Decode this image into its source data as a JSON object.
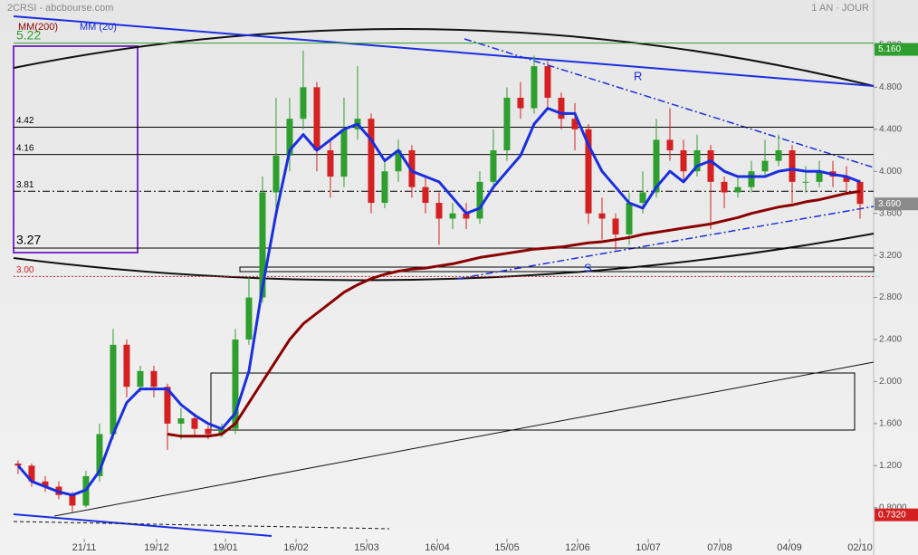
{
  "chart_data": {
    "type": "candlestick",
    "title": "2CRSI - abcbourse.com",
    "period": "1 AN · JOUR",
    "open": [
      1.22,
      1.2,
      1.05,
      1.0,
      0.92,
      0.82,
      1.1,
      1.5,
      2.35,
      1.95,
      2.1,
      1.95,
      1.6,
      1.65,
      1.55,
      1.5,
      1.55,
      2.4,
      2.8,
      3.8,
      4.15,
      4.5,
      4.8,
      4.2,
      3.95,
      4.4,
      4.5,
      3.7,
      4.0,
      4.2,
      3.85,
      3.7,
      3.55,
      3.6,
      3.55,
      3.9,
      4.2,
      4.7,
      4.6,
      5.0,
      4.7,
      4.5,
      4.4,
      3.6,
      3.55,
      3.4,
      3.7,
      3.8,
      4.3,
      4.2,
      4.0,
      4.2,
      3.9,
      3.8,
      3.85,
      4.0,
      4.1,
      4.2,
      3.9,
      3.9,
      4.0,
      3.95,
      3.9
    ],
    "high": [
      1.25,
      1.22,
      1.1,
      1.05,
      0.95,
      1.15,
      1.6,
      2.5,
      2.4,
      2.15,
      2.15,
      1.98,
      1.75,
      1.7,
      1.58,
      1.6,
      2.5,
      3.0,
      3.95,
      4.7,
      4.7,
      5.15,
      4.85,
      4.3,
      4.7,
      5.0,
      4.55,
      4.1,
      4.3,
      4.25,
      3.95,
      3.8,
      3.7,
      3.7,
      4.0,
      4.4,
      4.8,
      4.85,
      5.1,
      5.05,
      4.75,
      4.65,
      4.45,
      3.75,
      3.6,
      3.8,
      4.0,
      4.5,
      4.6,
      4.3,
      4.35,
      4.25,
      3.95,
      3.95,
      4.1,
      4.3,
      4.35,
      4.25,
      4.05,
      4.1,
      4.1,
      4.05,
      3.92
    ],
    "low": [
      1.12,
      1.0,
      0.95,
      0.88,
      0.76,
      0.8,
      1.05,
      1.45,
      1.85,
      1.9,
      1.85,
      1.35,
      1.45,
      1.48,
      1.45,
      1.47,
      1.5,
      2.35,
      2.75,
      3.55,
      4.0,
      4.4,
      4.0,
      3.75,
      3.85,
      4.3,
      3.6,
      3.65,
      3.9,
      3.75,
      3.6,
      3.3,
      3.45,
      3.45,
      3.5,
      3.85,
      4.1,
      4.5,
      4.55,
      4.6,
      4.4,
      4.2,
      3.5,
      3.35,
      3.25,
      3.3,
      3.6,
      3.75,
      4.1,
      3.9,
      3.95,
      3.45,
      3.65,
      3.75,
      3.8,
      3.95,
      4.05,
      3.7,
      3.8,
      3.85,
      3.85,
      3.8,
      3.55
    ],
    "close": [
      1.2,
      1.05,
      1.0,
      0.92,
      0.82,
      1.1,
      1.5,
      2.35,
      1.95,
      2.1,
      1.95,
      1.6,
      1.65,
      1.55,
      1.5,
      1.55,
      2.4,
      2.8,
      3.8,
      4.15,
      4.5,
      4.8,
      4.2,
      3.95,
      4.4,
      4.5,
      3.7,
      4.0,
      4.2,
      3.85,
      3.7,
      3.55,
      3.6,
      3.55,
      3.9,
      4.2,
      4.7,
      4.6,
      5.0,
      4.7,
      4.5,
      4.4,
      3.6,
      3.55,
      3.4,
      3.7,
      3.8,
      4.3,
      4.2,
      4.0,
      4.2,
      3.9,
      3.8,
      3.85,
      4.0,
      4.1,
      4.2,
      3.9,
      3.9,
      4.0,
      3.95,
      3.9,
      3.69
    ],
    "up_color": "#2e9e2e",
    "down_color": "#d42020",
    "series": [
      {
        "name": "MM (20)",
        "color": "#1a2ee0",
        "values": [
          1.2,
          1.05,
          1.0,
          0.95,
          0.92,
          0.97,
          1.15,
          1.5,
          1.8,
          1.93,
          1.93,
          1.93,
          1.78,
          1.68,
          1.6,
          1.55,
          1.7,
          2.1,
          2.9,
          3.6,
          4.2,
          4.35,
          4.2,
          4.3,
          4.4,
          4.45,
          4.3,
          4.1,
          4.2,
          4.0,
          3.95,
          3.9,
          3.75,
          3.6,
          3.65,
          3.85,
          4.0,
          4.15,
          4.45,
          4.6,
          4.55,
          4.55,
          4.25,
          4.0,
          3.85,
          3.7,
          3.65,
          3.85,
          4.0,
          3.9,
          4.05,
          4.1,
          4.0,
          3.95,
          3.95,
          3.95,
          4.0,
          4.02,
          4.0,
          4.0,
          3.97,
          3.95,
          3.9
        ]
      },
      {
        "name": "MM(200)",
        "color": "#8b0000",
        "values": [
          null,
          null,
          null,
          null,
          null,
          null,
          null,
          null,
          null,
          null,
          null,
          1.5,
          1.48,
          1.48,
          1.48,
          1.5,
          1.6,
          1.8,
          2.0,
          2.2,
          2.4,
          2.55,
          2.65,
          2.75,
          2.85,
          2.92,
          2.98,
          3.02,
          3.05,
          3.07,
          3.08,
          3.1,
          3.12,
          3.15,
          3.18,
          3.2,
          3.22,
          3.24,
          3.26,
          3.27,
          3.28,
          3.3,
          3.32,
          3.33,
          3.35,
          3.37,
          3.4,
          3.42,
          3.44,
          3.46,
          3.48,
          3.5,
          3.53,
          3.56,
          3.6,
          3.63,
          3.66,
          3.68,
          3.71,
          3.73,
          3.76,
          3.79,
          3.81
        ]
      }
    ],
    "xlim": [
      -1.33,
      63
    ],
    "xticks": [
      {
        "value": 4.87,
        "label": "21/11"
      },
      {
        "value": 10.2,
        "label": "19/12"
      },
      {
        "value": 15.27,
        "label": "19/01"
      },
      {
        "value": 20.47,
        "label": "16/02"
      },
      {
        "value": 25.67,
        "label": "15/03"
      },
      {
        "value": 30.87,
        "label": "16/04"
      },
      {
        "value": 36,
        "label": "15/05"
      },
      {
        "value": 41.2,
        "label": "12/06"
      },
      {
        "value": 46.4,
        "label": "10/07"
      },
      {
        "value": 51.67,
        "label": "07/08"
      },
      {
        "value": 56.8,
        "label": "04/09"
      },
      {
        "value": 62,
        "label": "02/10"
      }
    ],
    "ylim": [
      0.35,
      5.63
    ],
    "yticks": [
      {
        "value": 5.2,
        "label": "5.200"
      },
      {
        "value": 4.8,
        "label": "4.800"
      },
      {
        "value": 4.4,
        "label": "4.400"
      },
      {
        "value": 4,
        "label": "4.000"
      },
      {
        "value": 3.6,
        "label": "3.600"
      },
      {
        "value": 3.2,
        "label": "3.200"
      },
      {
        "value": 2.8,
        "label": "2.800"
      },
      {
        "value": 2.4,
        "label": "2.400"
      },
      {
        "value": 2,
        "label": "2.000"
      },
      {
        "value": 1.6,
        "label": "1.600"
      },
      {
        "value": 1.2,
        "label": "1.200"
      },
      {
        "value": 0.8,
        "label": "0.8000"
      }
    ],
    "levels": [
      {
        "value": 5.22,
        "color": "#2e9e2e",
        "style": "solid",
        "big": true
      },
      {
        "value": 4.42,
        "color": "#000000",
        "style": "solid"
      },
      {
        "value": 4.16,
        "color": "#000000",
        "style": "solid"
      },
      {
        "value": 3.81,
        "color": "#000000",
        "style": "dashdot"
      },
      {
        "value": 3.27,
        "color": "#000000",
        "style": "solid",
        "big": true
      },
      {
        "value": 3,
        "label": "3.00",
        "color": "#d42020",
        "style": "dotted"
      }
    ],
    "price_tags": [
      {
        "value": 5.16,
        "label": "5.160",
        "color": "#2e9e2e"
      },
      {
        "value": 3.69,
        "label": "3.690",
        "color": "#8a8a8a"
      },
      {
        "value": 0.732,
        "label": "0.7320",
        "color": "#d42020"
      }
    ],
    "annotations": [
      "R",
      "S"
    ]
  }
}
